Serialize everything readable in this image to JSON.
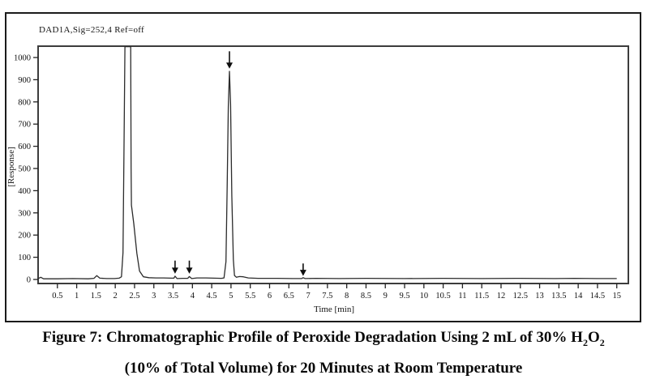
{
  "panel": {
    "device_label": "DAD1A,Sig=252,4 Ref=off",
    "x_axis_label": "Time [min]",
    "y_axis_label": "[Response]"
  },
  "caption": {
    "line1_main": "Figure 7: Chromatographic Profile of Peroxide Degradation Using 2 mL of 30% H",
    "line1_sub1": "2",
    "line1_mid": "O",
    "line1_sub2": "2",
    "line2": "(10% of Total Volume) for 20 Minutes at Room Temperature"
  },
  "chart_data": {
    "type": "line",
    "title": "DAD1A,Sig=252,4 Ref=off",
    "xlabel": "Time [min]",
    "ylabel": "[Response]",
    "xlim": [
      0,
      15.3
    ],
    "ylim": [
      0,
      1050
    ],
    "grid": false,
    "legend": false,
    "line_color": "#2b2b2b",
    "x_ticks": [
      0.5,
      1,
      1.5,
      2,
      2.5,
      3,
      3.5,
      4,
      4.5,
      5,
      5.5,
      6,
      6.5,
      7,
      7.5,
      8,
      8.5,
      9,
      9.5,
      10,
      10.5,
      11,
      11.5,
      12,
      12.5,
      13,
      13.5,
      14,
      14.5,
      15
    ],
    "y_ticks": [
      0,
      100,
      200,
      300,
      400,
      500,
      600,
      700,
      800,
      900,
      1000
    ],
    "series": [
      {
        "name": "DAD1A signal (252,4 nm, Ref=off)",
        "points": [
          [
            0,
            4
          ],
          [
            0.07,
            10
          ],
          [
            0.14,
            3
          ],
          [
            0.5,
            3
          ],
          [
            0.9,
            4
          ],
          [
            1.3,
            3
          ],
          [
            1.45,
            5
          ],
          [
            1.52,
            17
          ],
          [
            1.6,
            6
          ],
          [
            1.78,
            4
          ],
          [
            1.98,
            4
          ],
          [
            2.1,
            6
          ],
          [
            2.16,
            12
          ],
          [
            2.2,
            120
          ],
          [
            2.23,
            650
          ],
          [
            2.25,
            1050
          ],
          [
            2.4,
            1050
          ],
          [
            2.41,
            500
          ],
          [
            2.42,
            335
          ],
          [
            2.48,
            252
          ],
          [
            2.56,
            118
          ],
          [
            2.63,
            38
          ],
          [
            2.73,
            12
          ],
          [
            2.87,
            8
          ],
          [
            3.05,
            7
          ],
          [
            3.25,
            7
          ],
          [
            3.45,
            6
          ],
          [
            3.52,
            6
          ],
          [
            3.55,
            15
          ],
          [
            3.6,
            4
          ],
          [
            3.75,
            5
          ],
          [
            3.88,
            5
          ],
          [
            3.92,
            13
          ],
          [
            3.98,
            4
          ],
          [
            4.12,
            7
          ],
          [
            4.35,
            7
          ],
          [
            4.55,
            6
          ],
          [
            4.75,
            5
          ],
          [
            4.82,
            7
          ],
          [
            4.87,
            80
          ],
          [
            4.9,
            420
          ],
          [
            4.93,
            780
          ],
          [
            4.96,
            938
          ],
          [
            4.99,
            790
          ],
          [
            5.02,
            380
          ],
          [
            5.06,
            90
          ],
          [
            5.09,
            18
          ],
          [
            5.14,
            10
          ],
          [
            5.22,
            13
          ],
          [
            5.32,
            12
          ],
          [
            5.45,
            7
          ],
          [
            5.7,
            5
          ],
          [
            6.2,
            5
          ],
          [
            6.6,
            4
          ],
          [
            6.83,
            4
          ],
          [
            6.87,
            8
          ],
          [
            6.92,
            4
          ],
          [
            7.2,
            5
          ],
          [
            7.8,
            4
          ],
          [
            8.5,
            5
          ],
          [
            9.5,
            4
          ],
          [
            10.5,
            5
          ],
          [
            11.5,
            4
          ],
          [
            12.5,
            5
          ],
          [
            13.4,
            4
          ],
          [
            13.9,
            5
          ],
          [
            14.5,
            4
          ],
          [
            15,
            4
          ]
        ]
      }
    ],
    "peaks": [
      {
        "time": 2.3,
        "response": ">1050",
        "note": "solvent/peroxide front peak, off-scale (clipped at plot top)"
      },
      {
        "time": 3.55,
        "response": 15,
        "note": "minor peak marked with arrow"
      },
      {
        "time": 3.92,
        "response": 13,
        "note": "minor peak marked with arrow"
      },
      {
        "time": 4.96,
        "response": 938,
        "note": "main analyte peak marked with arrow"
      },
      {
        "time": 6.87,
        "response": 8,
        "note": "trace peak marked with arrow"
      }
    ],
    "arrow_markers": [
      {
        "time": 3.55,
        "tip_response": 26,
        "tail_response": 85
      },
      {
        "time": 3.92,
        "tip_response": 26,
        "tail_response": 85
      },
      {
        "time": 4.96,
        "tip_response": 950,
        "tail_response": 1028
      },
      {
        "time": 6.87,
        "tip_response": 16,
        "tail_response": 72
      }
    ]
  },
  "colors": {
    "trace": "#2b2b2b",
    "plot_border": "#3c3c3c",
    "frame_border": "#1b1b1b",
    "background": "#ffffff",
    "text": "#111111"
  }
}
